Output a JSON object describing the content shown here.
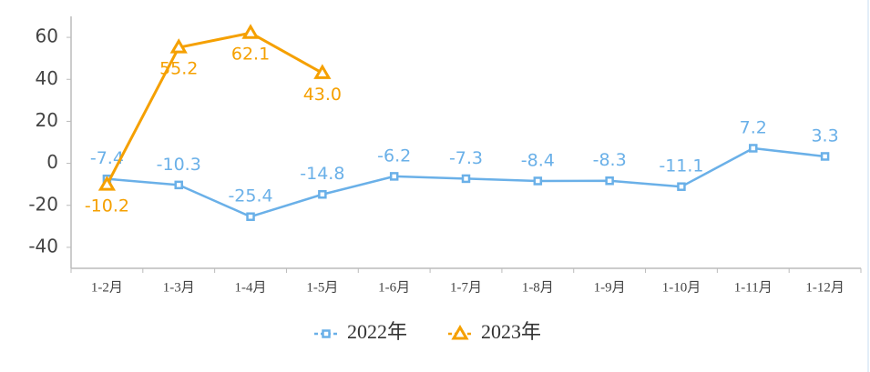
{
  "chart_data": {
    "type": "line",
    "categories": [
      "1-2月",
      "1-3月",
      "1-4月",
      "1-5月",
      "1-6月",
      "1-7月",
      "1-8月",
      "1-9月",
      "1-10月",
      "1-11月",
      "1-12月"
    ],
    "series": [
      {
        "name": "2022年",
        "color": "#6ab0e8",
        "marker": "square",
        "label_position": "above",
        "values": [
          -7.4,
          -10.3,
          -25.4,
          -14.8,
          -6.2,
          -7.3,
          -8.4,
          -8.3,
          -11.1,
          7.2,
          3.3
        ]
      },
      {
        "name": "2023年",
        "color": "#f5a000",
        "marker": "triangle",
        "label_position": "below",
        "values": [
          -10.2,
          55.2,
          62.1,
          43.0,
          null,
          null,
          null,
          null,
          null,
          null,
          null
        ],
        "value_labels": [
          "-10.2",
          "55.2",
          "62.1",
          "43.0",
          null,
          null,
          null,
          null,
          null,
          null,
          null
        ]
      }
    ],
    "ylim": [
      -50,
      70
    ],
    "yticks": [
      -40,
      -20,
      0,
      20,
      40,
      60
    ],
    "grid": false,
    "legend": "bottom"
  }
}
